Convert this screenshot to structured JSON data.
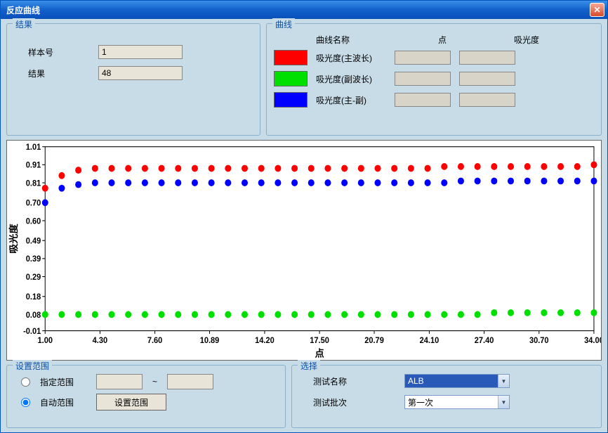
{
  "window": {
    "title": "反应曲线"
  },
  "results": {
    "legend": "结果",
    "sample_label": "样本号",
    "sample_value": "1",
    "result_label": "结果",
    "result_value": "48"
  },
  "curve_panel": {
    "legend": "曲线",
    "header_name": "曲线名称",
    "header_point": "点",
    "header_abs": "吸光度",
    "rows": [
      {
        "color": "#ff0000",
        "name": "吸光度(主波长)",
        "point": "",
        "abs": ""
      },
      {
        "color": "#00e000",
        "name": "吸光度(副波长)",
        "point": "",
        "abs": ""
      },
      {
        "color": "#0000ff",
        "name": "吸光度(主-副)",
        "point": "",
        "abs": ""
      }
    ]
  },
  "chart": {
    "y_label": "吸光度",
    "x_label": "点",
    "y_ticks": [
      -0.01,
      0.08,
      0.18,
      0.29,
      0.39,
      0.49,
      0.6,
      0.7,
      0.81,
      0.91,
      1.01
    ],
    "x_ticks": [
      1.0,
      4.3,
      7.6,
      10.89,
      14.2,
      17.5,
      20.79,
      24.1,
      27.4,
      30.7,
      34.0
    ],
    "xlim": [
      1,
      34
    ],
    "ylim": [
      -0.01,
      1.01
    ],
    "marker_radius": 4.5,
    "background_color": "#ffffff",
    "border_color": "#000000",
    "tick_font_size": 11,
    "axis_font_weight": "bold",
    "series": [
      {
        "color": "#ff0000",
        "x": [
          1,
          2,
          3,
          4,
          5,
          6,
          7,
          8,
          9,
          10,
          11,
          12,
          13,
          14,
          15,
          16,
          17,
          18,
          19,
          20,
          21,
          22,
          23,
          24,
          25,
          26,
          27,
          28,
          29,
          30,
          31,
          32,
          33,
          34
        ],
        "y": [
          0.78,
          0.85,
          0.88,
          0.89,
          0.89,
          0.89,
          0.89,
          0.89,
          0.89,
          0.89,
          0.89,
          0.89,
          0.89,
          0.89,
          0.89,
          0.89,
          0.89,
          0.89,
          0.89,
          0.89,
          0.89,
          0.89,
          0.89,
          0.89,
          0.9,
          0.9,
          0.9,
          0.9,
          0.9,
          0.9,
          0.9,
          0.9,
          0.9,
          0.91
        ]
      },
      {
        "color": "#00e000",
        "x": [
          1,
          2,
          3,
          4,
          5,
          6,
          7,
          8,
          9,
          10,
          11,
          12,
          13,
          14,
          15,
          16,
          17,
          18,
          19,
          20,
          21,
          22,
          23,
          24,
          25,
          26,
          27,
          28,
          29,
          30,
          31,
          32,
          33,
          34
        ],
        "y": [
          0.08,
          0.08,
          0.08,
          0.08,
          0.08,
          0.08,
          0.08,
          0.08,
          0.08,
          0.08,
          0.08,
          0.08,
          0.08,
          0.08,
          0.08,
          0.08,
          0.08,
          0.08,
          0.08,
          0.08,
          0.08,
          0.08,
          0.08,
          0.08,
          0.08,
          0.08,
          0.08,
          0.09,
          0.09,
          0.09,
          0.09,
          0.09,
          0.09,
          0.09
        ]
      },
      {
        "color": "#0000ff",
        "x": [
          1,
          2,
          3,
          4,
          5,
          6,
          7,
          8,
          9,
          10,
          11,
          12,
          13,
          14,
          15,
          16,
          17,
          18,
          19,
          20,
          21,
          22,
          23,
          24,
          25,
          26,
          27,
          28,
          29,
          30,
          31,
          32,
          33,
          34
        ],
        "y": [
          0.7,
          0.78,
          0.8,
          0.81,
          0.81,
          0.81,
          0.81,
          0.81,
          0.81,
          0.81,
          0.81,
          0.81,
          0.81,
          0.81,
          0.81,
          0.81,
          0.81,
          0.81,
          0.81,
          0.81,
          0.81,
          0.81,
          0.81,
          0.81,
          0.81,
          0.82,
          0.82,
          0.82,
          0.82,
          0.82,
          0.82,
          0.82,
          0.82,
          0.82
        ]
      }
    ]
  },
  "range": {
    "legend": "设置范围",
    "opt_specify": "指定范围",
    "opt_auto": "自动范围",
    "selected": "auto",
    "from": "",
    "to": "",
    "button": "设置范围"
  },
  "select": {
    "legend": "选择",
    "test_name_label": "测试名称",
    "test_name_value": "ALB",
    "batch_label": "测试批次",
    "batch_value": "第一次"
  }
}
